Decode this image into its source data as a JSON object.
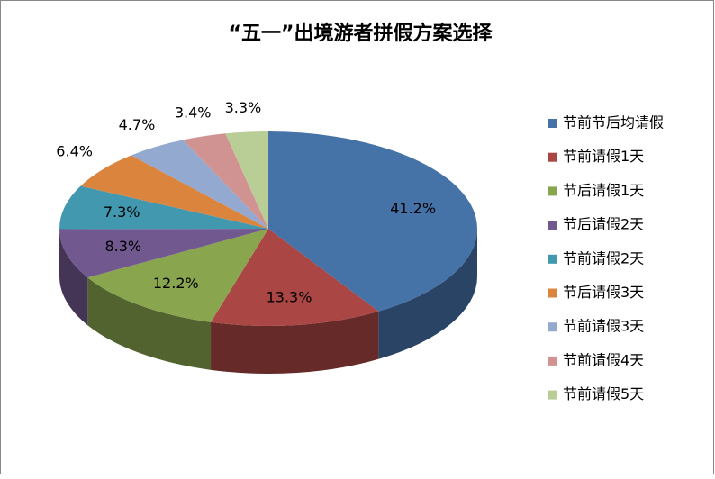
{
  "chart_data": {
    "type": "pie",
    "title": "“五一”出境游者拼假方案选择",
    "categories": [
      "节前节后均请假",
      "节前请假1天",
      "节后请假1天",
      "节后请假2天",
      "节前请假2天",
      "节后请假3天",
      "节前请假3天",
      "节前请假4天",
      "节前请假5天"
    ],
    "values": [
      41.2,
      13.3,
      12.2,
      8.3,
      7.3,
      6.4,
      4.7,
      3.4,
      3.3
    ],
    "value_labels": [
      "41.2%",
      "13.3%",
      "12.2%",
      "8.3%",
      "7.3%",
      "6.4%",
      "4.7%",
      "3.4%",
      "3.3%"
    ],
    "colors": [
      "#4572a7",
      "#aa4643",
      "#89a54e",
      "#71588f",
      "#4198af",
      "#db843d",
      "#93a9cf",
      "#d19392",
      "#b9cd96"
    ],
    "legend": "right",
    "three_d": true
  }
}
